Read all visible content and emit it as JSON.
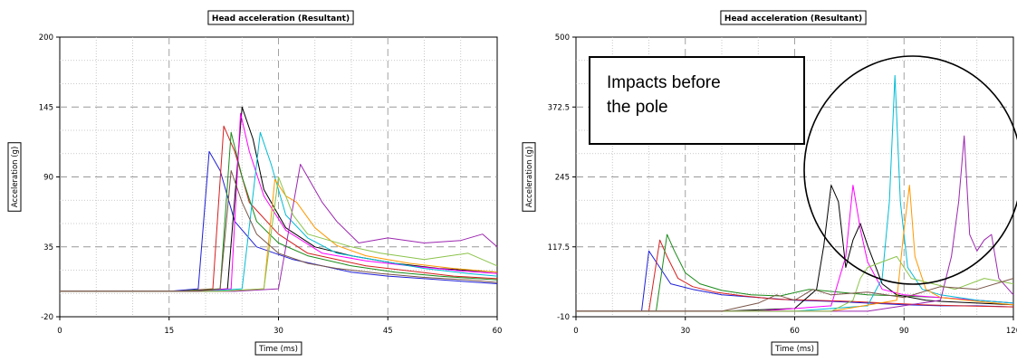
{
  "chart_data": [
    {
      "type": "line",
      "title": "Head acceleration (Resultant)",
      "xlabel": "Time (ms)",
      "ylabel": "Acceleration (g)",
      "xlim": [
        0,
        60
      ],
      "ylim": [
        -20,
        200
      ],
      "x_ticks": [
        "0",
        "15",
        "30",
        "45",
        "60"
      ],
      "y_ticks": [
        "-20",
        "35",
        "90",
        "145",
        "200"
      ],
      "grid": true,
      "colors": [
        "#1f1fd6",
        "#d61f1f",
        "#1a8a1a",
        "#000000",
        "#ff00ff",
        "#00bcd4",
        "#ff9800",
        "#9c27b0",
        "#8bc34a",
        "#795548",
        "#607d8b",
        "#f44336",
        "#3f51b5",
        "#009688",
        "#e91e63",
        "#ffeb3b"
      ],
      "series": [
        {
          "x": [
            0,
            15,
            19,
            20.5,
            22,
            24,
            27,
            32,
            36,
            40,
            45,
            50,
            55,
            60
          ],
          "y": [
            0,
            0,
            2,
            110,
            95,
            55,
            35,
            25,
            20,
            15,
            12,
            10,
            8,
            6
          ]
        },
        {
          "x": [
            0,
            16,
            21,
            22.5,
            24,
            26,
            30,
            34,
            38,
            42,
            48,
            54,
            60
          ],
          "y": [
            0,
            0,
            2,
            130,
            110,
            70,
            45,
            30,
            25,
            20,
            16,
            12,
            10
          ]
        },
        {
          "x": [
            0,
            16,
            22,
            23.5,
            25,
            27,
            30,
            34,
            40,
            46,
            52,
            60
          ],
          "y": [
            0,
            0,
            2,
            125,
            90,
            55,
            38,
            28,
            20,
            15,
            12,
            9
          ]
        },
        {
          "x": [
            0,
            18,
            23,
            25,
            26.5,
            28,
            31,
            35,
            40,
            46,
            52,
            60
          ],
          "y": [
            0,
            0,
            2,
            145,
            120,
            80,
            50,
            35,
            28,
            22,
            18,
            15
          ]
        },
        {
          "x": [
            0,
            18,
            23.5,
            24.8,
            26,
            28,
            31,
            36,
            42,
            48,
            55,
            60
          ],
          "y": [
            0,
            0,
            2,
            140,
            110,
            75,
            48,
            30,
            24,
            20,
            16,
            14
          ]
        },
        {
          "x": [
            0,
            20,
            25,
            27.5,
            29,
            31,
            34,
            38,
            44,
            50,
            56,
            60
          ],
          "y": [
            0,
            0,
            2,
            125,
            100,
            60,
            42,
            30,
            24,
            18,
            14,
            12
          ]
        },
        {
          "x": [
            0,
            22,
            28,
            29.5,
            31,
            32.5,
            35,
            38,
            42,
            48,
            54,
            60
          ],
          "y": [
            0,
            0,
            2,
            88,
            75,
            70,
            50,
            36,
            28,
            22,
            18,
            15
          ]
        },
        {
          "x": [
            0,
            24,
            30,
            33,
            34.5,
            36,
            38,
            41,
            45,
            50,
            55,
            58,
            60
          ],
          "y": [
            0,
            0,
            2,
            100,
            85,
            70,
            55,
            38,
            42,
            38,
            40,
            45,
            35
          ]
        },
        {
          "x": [
            0,
            22,
            28,
            30,
            32,
            34,
            37,
            40,
            44,
            50,
            56,
            60
          ],
          "y": [
            0,
            0,
            2,
            90,
            60,
            45,
            40,
            35,
            30,
            25,
            30,
            20
          ]
        },
        {
          "x": [
            0,
            19,
            22,
            23.5,
            25,
            27,
            30,
            34,
            38,
            44,
            50,
            56,
            60
          ],
          "y": [
            0,
            0,
            2,
            95,
            70,
            45,
            30,
            22,
            18,
            14,
            11,
            9,
            7
          ]
        }
      ]
    },
    {
      "type": "line",
      "title": "Head acceleration (Resultant)",
      "xlabel": "Time (ms)",
      "ylabel": "Acceleration (g)",
      "xlim": [
        0,
        120
      ],
      "ylim": [
        -10,
        500
      ],
      "x_ticks": [
        "0",
        "30",
        "60",
        "90",
        "120"
      ],
      "y_ticks": [
        "-10",
        "117.5",
        "245",
        "372.5",
        "500"
      ],
      "grid": true,
      "annotation": "Impacts before the pole",
      "series": [
        {
          "x": [
            0,
            18,
            20,
            22,
            26,
            32,
            40,
            50,
            60,
            70,
            80,
            90,
            100,
            110,
            120
          ],
          "y": [
            0,
            0,
            110,
            90,
            50,
            40,
            30,
            25,
            20,
            18,
            15,
            12,
            10,
            10,
            8
          ]
        },
        {
          "x": [
            0,
            20,
            23,
            25,
            28,
            32,
            38,
            46,
            55,
            65,
            75,
            85,
            95,
            105,
            120
          ],
          "y": [
            0,
            0,
            130,
            100,
            60,
            45,
            35,
            28,
            22,
            20,
            18,
            15,
            12,
            10,
            8
          ]
        },
        {
          "x": [
            0,
            22,
            25,
            27,
            30,
            34,
            40,
            48,
            56,
            64,
            72,
            80,
            90,
            100,
            110,
            120
          ],
          "y": [
            0,
            0,
            140,
            110,
            70,
            50,
            38,
            30,
            28,
            40,
            35,
            30,
            28,
            25,
            20,
            15
          ]
        },
        {
          "x": [
            0,
            40,
            60,
            66,
            68,
            70,
            72,
            74,
            76,
            78,
            80,
            84,
            88,
            92,
            96,
            100,
            110,
            120
          ],
          "y": [
            0,
            0,
            5,
            40,
            120,
            230,
            200,
            80,
            130,
            160,
            120,
            50,
            30,
            25,
            20,
            18,
            15,
            12
          ]
        },
        {
          "x": [
            0,
            50,
            70,
            74,
            76,
            78,
            80,
            84,
            90,
            100,
            110,
            120
          ],
          "y": [
            0,
            0,
            10,
            100,
            230,
            150,
            90,
            40,
            30,
            25,
            20,
            15
          ]
        },
        {
          "x": [
            0,
            60,
            80,
            84,
            86,
            87.5,
            89,
            91,
            95,
            100,
            110,
            120
          ],
          "y": [
            0,
            0,
            10,
            60,
            200,
            430,
            200,
            80,
            40,
            30,
            20,
            15
          ]
        },
        {
          "x": [
            0,
            70,
            88,
            90,
            91.5,
            93,
            96,
            100,
            110,
            120
          ],
          "y": [
            0,
            0,
            20,
            150,
            230,
            100,
            40,
            25,
            18,
            12
          ]
        },
        {
          "x": [
            0,
            80,
            100,
            103,
            105,
            106.5,
            108,
            110,
            112,
            114,
            116,
            120
          ],
          "y": [
            0,
            0,
            20,
            100,
            200,
            320,
            140,
            110,
            130,
            140,
            60,
            30
          ]
        },
        {
          "x": [
            0,
            70,
            76,
            78,
            80,
            84,
            88,
            92,
            98,
            104,
            112,
            120
          ],
          "y": [
            0,
            0,
            20,
            60,
            80,
            90,
            100,
            60,
            50,
            40,
            60,
            50
          ]
        },
        {
          "x": [
            0,
            40,
            50,
            55,
            60,
            65,
            70,
            80,
            90,
            100,
            110,
            120
          ],
          "y": [
            0,
            0,
            15,
            30,
            20,
            40,
            30,
            35,
            25,
            45,
            40,
            60
          ]
        }
      ]
    }
  ]
}
